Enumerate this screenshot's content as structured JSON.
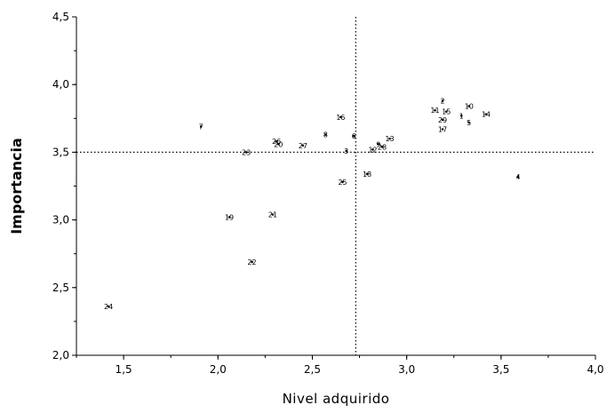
{
  "chart_data": {
    "type": "scatter",
    "xlabel": "Nivel adquirido",
    "ylabel": "Importancia",
    "xlim": [
      1.25,
      4.0
    ],
    "ylim": [
      2.0,
      4.5
    ],
    "x_ticks": [
      "1,5",
      "2,0",
      "2,5",
      "3,0",
      "3,5",
      "4,0"
    ],
    "y_ticks": [
      "2,0",
      "2,5",
      "3,0",
      "3,5",
      "4,0",
      "4,5"
    ],
    "reference_lines": {
      "x": 2.73,
      "y": 3.5
    },
    "points": [
      {
        "label": "1",
        "x": 3.29,
        "y": 3.77
      },
      {
        "label": "2",
        "x": 3.19,
        "y": 3.88
      },
      {
        "label": "3",
        "x": 2.68,
        "y": 3.51
      },
      {
        "label": "4",
        "x": 3.59,
        "y": 3.32
      },
      {
        "label": "5",
        "x": 3.33,
        "y": 3.72
      },
      {
        "label": "6",
        "x": 2.72,
        "y": 3.62
      },
      {
        "label": "7",
        "x": 1.91,
        "y": 3.69
      },
      {
        "label": "8",
        "x": 2.57,
        "y": 3.63
      },
      {
        "label": "9",
        "x": 2.85,
        "y": 3.56
      },
      {
        "label": "10",
        "x": 3.33,
        "y": 3.84
      },
      {
        "label": "11",
        "x": 3.15,
        "y": 3.81
      },
      {
        "label": "12",
        "x": 2.82,
        "y": 3.52
      },
      {
        "label": "13",
        "x": 2.91,
        "y": 3.6
      },
      {
        "label": "14",
        "x": 3.42,
        "y": 3.78
      },
      {
        "label": "15",
        "x": 3.21,
        "y": 3.8
      },
      {
        "label": "16",
        "x": 2.65,
        "y": 3.76
      },
      {
        "label": "17",
        "x": 3.19,
        "y": 3.67
      },
      {
        "label": "18",
        "x": 2.79,
        "y": 3.34
      },
      {
        "label": "19",
        "x": 2.06,
        "y": 3.02
      },
      {
        "label": "20",
        "x": 2.32,
        "y": 3.56
      },
      {
        "label": "21",
        "x": 2.29,
        "y": 3.04
      },
      {
        "label": "22",
        "x": 2.18,
        "y": 2.69
      },
      {
        "label": "23",
        "x": 2.15,
        "y": 3.5
      },
      {
        "label": "24",
        "x": 1.42,
        "y": 2.36
      },
      {
        "label": "25",
        "x": 2.66,
        "y": 3.28
      },
      {
        "label": "26",
        "x": 2.31,
        "y": 3.58
      },
      {
        "label": "27",
        "x": 2.45,
        "y": 3.55
      },
      {
        "label": "28",
        "x": 2.87,
        "y": 3.54
      },
      {
        "label": "29",
        "x": 3.19,
        "y": 3.74
      }
    ]
  }
}
